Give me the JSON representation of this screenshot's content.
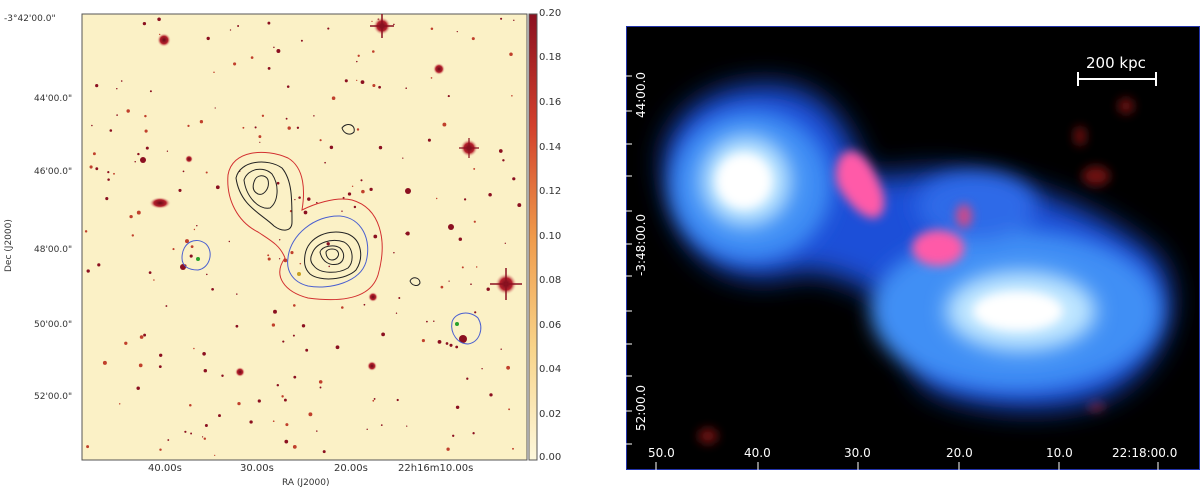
{
  "left": {
    "ra_ticks": [
      "40.00s",
      "30.00s",
      "20.00s",
      "22h16m10.00s"
    ],
    "dec_ticks": [
      "-3°42'00.0\"",
      "44'00.0\"",
      "46'00.0\"",
      "48'00.0\"",
      "50'00.0\"",
      "52'00.0\""
    ],
    "xlabel": "RA (J2000)",
    "ylabel": "Dec (J2000)",
    "colorbar_ticks": [
      "0.20",
      "0.18",
      "0.16",
      "0.14",
      "0.12",
      "0.10",
      "0.08",
      "0.06",
      "0.04",
      "0.02",
      "0.00"
    ],
    "colorbar_range": [
      0.0,
      0.2
    ],
    "colors": {
      "background": "#fbf1c6",
      "source": "#8b1020",
      "contour_red": "#d23030",
      "contour_black": "#222222",
      "contour_blue": "#4a5fd0"
    }
  },
  "right": {
    "ra_ticks": [
      "50.0",
      "40.0",
      "30.0",
      "20.0",
      "10.0",
      "22:18:00.0"
    ],
    "dec_ticks": [
      "44:00.0",
      "-3:48:00.0",
      "52:00.0"
    ],
    "scale_bar_label": "200 kpc",
    "colors": {
      "background": "#000000",
      "xray": "#3a7ff0",
      "core": "#ffffff",
      "radio": "#ff5aa8"
    }
  }
}
